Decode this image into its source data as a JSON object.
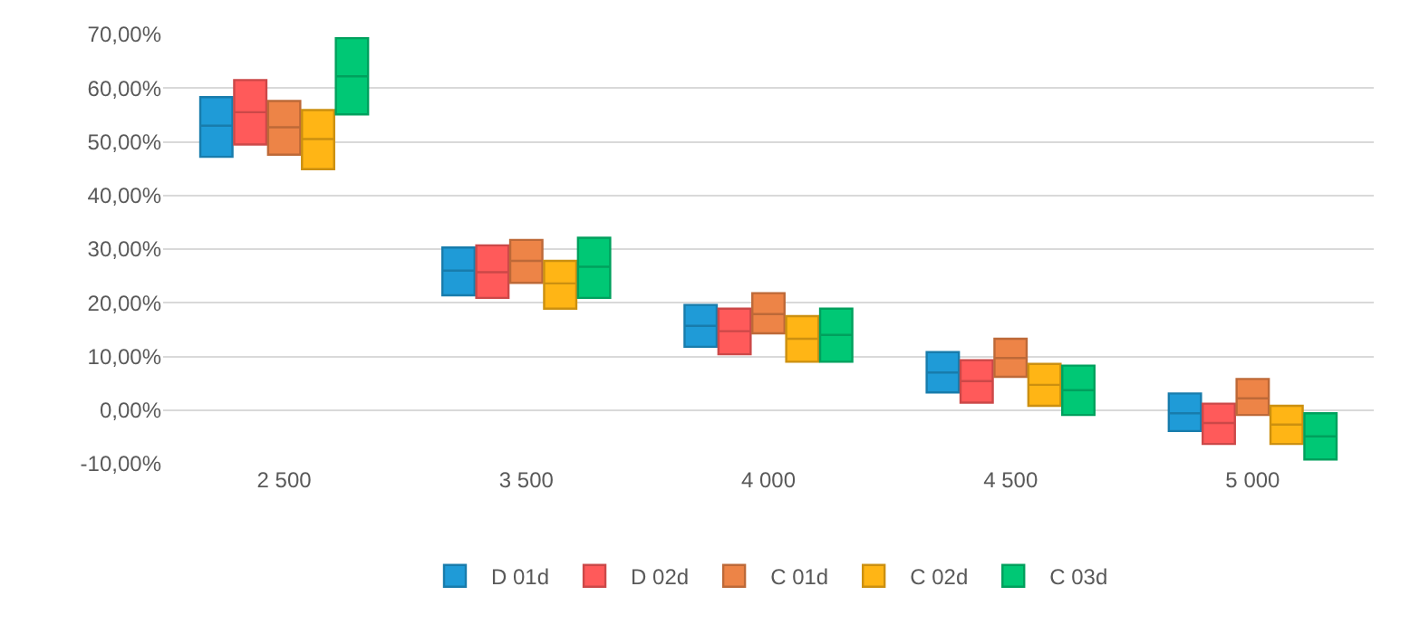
{
  "chart_data": {
    "type": "box",
    "categories": [
      "2 500",
      "3 500",
      "4 000",
      "4 500",
      "5 000"
    ],
    "series": [
      {
        "name": "D 01d",
        "color": "#1f9bd7",
        "boxes": [
          {
            "low": 47.2,
            "q1": 47.2,
            "median": 53.0,
            "q3": 58.3,
            "high": 58.3
          },
          {
            "low": 21.4,
            "q1": 21.4,
            "median": 26.0,
            "q3": 30.3,
            "high": 30.3
          },
          {
            "low": 11.8,
            "q1": 11.8,
            "median": 15.7,
            "q3": 19.6,
            "high": 19.6
          },
          {
            "low": 3.3,
            "q1": 3.3,
            "median": 7.0,
            "q3": 10.8,
            "high": 10.8
          },
          {
            "low": -3.9,
            "q1": -3.9,
            "median": -0.6,
            "q3": 3.1,
            "high": 3.1
          }
        ]
      },
      {
        "name": "D 02d",
        "color": "#ff5a5a",
        "boxes": [
          {
            "low": 49.5,
            "q1": 49.5,
            "median": 55.5,
            "q3": 61.5,
            "high": 61.5
          },
          {
            "low": 20.9,
            "q1": 20.9,
            "median": 25.7,
            "q3": 30.7,
            "high": 30.7
          },
          {
            "low": 10.4,
            "q1": 10.4,
            "median": 14.7,
            "q3": 18.9,
            "high": 18.9
          },
          {
            "low": 1.4,
            "q1": 1.4,
            "median": 5.4,
            "q3": 9.3,
            "high": 9.3
          },
          {
            "low": -6.3,
            "q1": -6.3,
            "median": -2.4,
            "q3": 1.2,
            "high": 1.2
          }
        ]
      },
      {
        "name": "C 01d",
        "color": "#ed8447",
        "boxes": [
          {
            "low": 47.6,
            "q1": 47.6,
            "median": 52.7,
            "q3": 57.6,
            "high": 57.6
          },
          {
            "low": 23.7,
            "q1": 23.7,
            "median": 27.8,
            "q3": 31.7,
            "high": 31.7
          },
          {
            "low": 14.3,
            "q1": 14.3,
            "median": 17.9,
            "q3": 21.8,
            "high": 21.8
          },
          {
            "low": 6.2,
            "q1": 6.2,
            "median": 9.7,
            "q3": 13.3,
            "high": 13.3
          },
          {
            "low": -0.9,
            "q1": -0.9,
            "median": 2.2,
            "q3": 5.8,
            "high": 5.8
          }
        ]
      },
      {
        "name": "C 02d",
        "color": "#ffb515",
        "boxes": [
          {
            "low": 44.9,
            "q1": 44.9,
            "median": 50.5,
            "q3": 55.9,
            "high": 55.9
          },
          {
            "low": 18.9,
            "q1": 18.9,
            "median": 23.6,
            "q3": 27.8,
            "high": 27.8
          },
          {
            "low": 9.0,
            "q1": 9.0,
            "median": 13.3,
            "q3": 17.5,
            "high": 17.5
          },
          {
            "low": 0.8,
            "q1": 0.8,
            "median": 4.7,
            "q3": 8.6,
            "high": 8.6
          },
          {
            "low": -6.3,
            "q1": -6.3,
            "median": -2.7,
            "q3": 0.8,
            "high": 0.8
          }
        ]
      },
      {
        "name": "C 03d",
        "color": "#00c875",
        "boxes": [
          {
            "low": 55.1,
            "q1": 55.1,
            "median": 62.2,
            "q3": 69.3,
            "high": 69.3
          },
          {
            "low": 20.9,
            "q1": 20.9,
            "median": 26.7,
            "q3": 32.1,
            "high": 32.1
          },
          {
            "low": 9.0,
            "q1": 9.0,
            "median": 14.0,
            "q3": 18.9,
            "high": 18.9
          },
          {
            "low": -0.9,
            "q1": -0.9,
            "median": 3.7,
            "q3": 8.3,
            "high": 8.3
          },
          {
            "low": -9.2,
            "q1": -9.2,
            "median": -4.9,
            "q3": -0.6,
            "high": -0.6
          }
        ]
      }
    ],
    "ylim": [
      -10,
      70
    ],
    "yticks": [
      {
        "value": -10,
        "label": "-10,00%"
      },
      {
        "value": 0,
        "label": "0,00%"
      },
      {
        "value": 10,
        "label": "10,00%"
      },
      {
        "value": 20,
        "label": "20,00%"
      },
      {
        "value": 30,
        "label": "30,00%"
      },
      {
        "value": 40,
        "label": "40,00%"
      },
      {
        "value": 50,
        "label": "50,00%"
      },
      {
        "value": 60,
        "label": "60,00%"
      },
      {
        "value": 70,
        "label": "70,00%"
      }
    ],
    "grid": "y",
    "legend": "bottom"
  }
}
